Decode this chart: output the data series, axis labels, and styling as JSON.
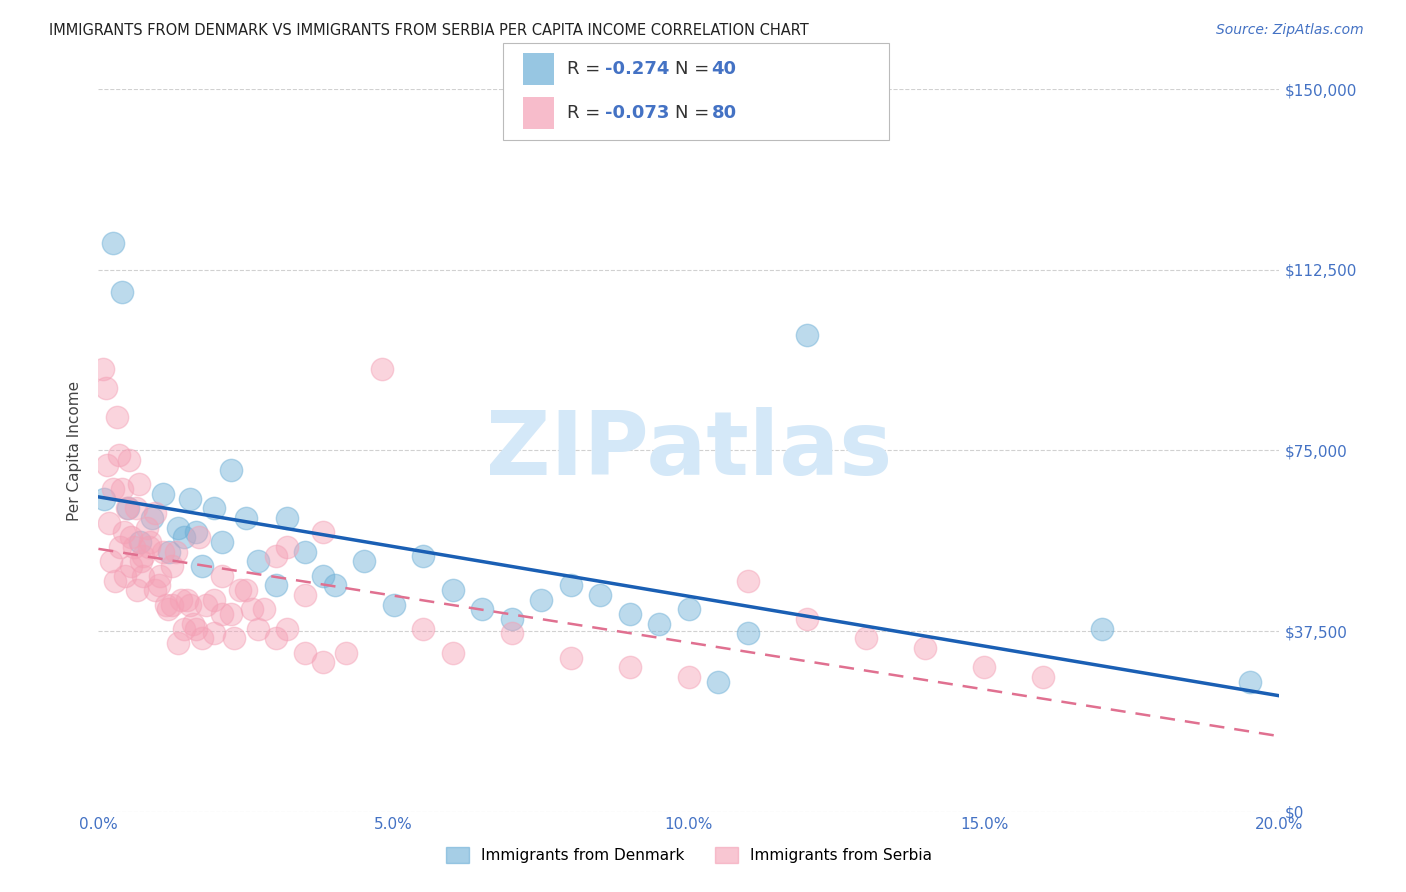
{
  "title": "IMMIGRANTS FROM DENMARK VS IMMIGRANTS FROM SERBIA PER CAPITA INCOME CORRELATION CHART",
  "source": "Source: ZipAtlas.com",
  "ylabel": "Per Capita Income",
  "ytick_labels": [
    "$0",
    "$37,500",
    "$75,000",
    "$112,500",
    "$150,000"
  ],
  "ytick_vals": [
    0,
    37500,
    75000,
    112500,
    150000
  ],
  "xtick_labels": [
    "0.0%",
    "5.0%",
    "10.0%",
    "15.0%",
    "20.0%"
  ],
  "xtick_vals": [
    0.0,
    5.0,
    10.0,
    15.0,
    20.0
  ],
  "denmark_color": "#6baed6",
  "serbia_color": "#f4a0b5",
  "trend_denmark_color": "#1a5fb4",
  "trend_serbia_color": "#e07090",
  "denmark_R": -0.274,
  "denmark_N": 40,
  "serbia_R": -0.073,
  "serbia_N": 80,
  "legend_label_denmark": "Immigrants from Denmark",
  "legend_label_serbia": "Immigrants from Serbia",
  "denmark_x": [
    0.1,
    0.25,
    0.4,
    0.5,
    0.7,
    0.9,
    1.1,
    1.2,
    1.35,
    1.45,
    1.55,
    1.65,
    1.75,
    1.95,
    2.1,
    2.25,
    2.5,
    2.7,
    3.0,
    3.2,
    3.5,
    3.8,
    4.0,
    4.5,
    5.0,
    5.5,
    6.0,
    6.5,
    7.0,
    7.5,
    8.0,
    8.5,
    9.0,
    9.5,
    10.0,
    10.5,
    11.0,
    12.0,
    17.0,
    19.5
  ],
  "denmark_y": [
    65000,
    118000,
    108000,
    63000,
    56000,
    61000,
    66000,
    54000,
    59000,
    57000,
    65000,
    58000,
    51000,
    63000,
    56000,
    71000,
    61000,
    52000,
    47000,
    61000,
    54000,
    49000,
    47000,
    52000,
    43000,
    53000,
    46000,
    42000,
    40000,
    44000,
    47000,
    45000,
    41000,
    39000,
    42000,
    27000,
    37000,
    99000,
    38000,
    27000
  ],
  "serbia_x": [
    0.08,
    0.12,
    0.18,
    0.22,
    0.28,
    0.32,
    0.36,
    0.4,
    0.44,
    0.48,
    0.52,
    0.56,
    0.6,
    0.64,
    0.68,
    0.72,
    0.76,
    0.82,
    0.88,
    0.95,
    1.02,
    1.1,
    1.18,
    1.25,
    1.32,
    1.4,
    1.5,
    1.6,
    1.7,
    1.82,
    1.95,
    2.1,
    2.25,
    2.4,
    2.6,
    2.8,
    3.0,
    3.2,
    3.5,
    3.8,
    0.15,
    0.25,
    0.35,
    0.45,
    0.55,
    0.65,
    0.75,
    0.85,
    0.95,
    1.05,
    1.15,
    1.25,
    1.35,
    1.45,
    1.55,
    1.65,
    1.75,
    1.95,
    2.1,
    2.3,
    2.5,
    2.7,
    3.0,
    3.2,
    3.5,
    3.8,
    4.2,
    4.8,
    5.5,
    6.0,
    7.0,
    8.0,
    9.0,
    10.0,
    11.0,
    12.0,
    13.0,
    14.0,
    15.0,
    16.0
  ],
  "serbia_y": [
    92000,
    88000,
    60000,
    52000,
    48000,
    82000,
    55000,
    67000,
    58000,
    63000,
    73000,
    57000,
    55000,
    63000,
    68000,
    52000,
    49000,
    59000,
    56000,
    62000,
    47000,
    54000,
    42000,
    43000,
    54000,
    44000,
    44000,
    39000,
    57000,
    43000,
    37000,
    49000,
    41000,
    46000,
    42000,
    42000,
    53000,
    55000,
    45000,
    58000,
    72000,
    67000,
    74000,
    49000,
    51000,
    46000,
    53000,
    55000,
    46000,
    49000,
    43000,
    51000,
    35000,
    38000,
    43000,
    38000,
    36000,
    44000,
    41000,
    36000,
    46000,
    38000,
    36000,
    38000,
    33000,
    31000,
    33000,
    92000,
    38000,
    33000,
    37000,
    32000,
    30000,
    28000,
    48000,
    40000,
    36000,
    34000,
    30000,
    28000
  ],
  "title_color": "#222222",
  "axis_label_color": "#4472c4",
  "r_n_text_color": "#4472c4",
  "grid_color": "#cccccc",
  "background_color": "#ffffff",
  "watermark_text": "ZIPatlas",
  "watermark_color": "#d4e8f8"
}
